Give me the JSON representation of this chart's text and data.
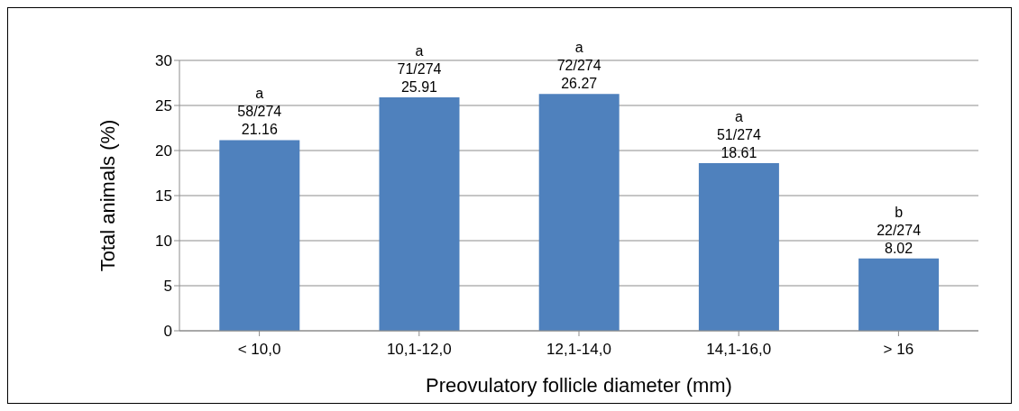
{
  "chart_data": {
    "type": "bar",
    "xlabel": "Preovulatory follicle diameter (mm)",
    "ylabel": "Total  animals (%)",
    "categories": [
      "< 10,0",
      "10,1-12,0",
      "12,1-14,0",
      "14,1-16,0",
      "> 16"
    ],
    "values": [
      21.16,
      25.91,
      26.27,
      18.61,
      8.02
    ],
    "color": "#4f81bd",
    "ylim": [
      0,
      30
    ],
    "yticks": [
      0,
      5,
      10,
      15,
      20,
      25,
      30
    ],
    "grid": "y",
    "data_labels": true,
    "annotations": [
      {
        "text": "a",
        "x": "< 10,0",
        "y": 21.16
      },
      {
        "text": "58/274",
        "x": "< 10,0",
        "y": 21.16
      },
      {
        "text": "a",
        "x": "10,1-12,0",
        "y": 25.91
      },
      {
        "text": "71/274",
        "x": "10,1-12,0",
        "y": 25.91
      },
      {
        "text": "a",
        "x": "12,1-14,0",
        "y": 26.27
      },
      {
        "text": "72/274",
        "x": "12,1-14,0",
        "y": 26.27
      },
      {
        "text": "a",
        "x": "14,1-16,0",
        "y": 18.61
      },
      {
        "text": "51/274",
        "x": "14,1-16,0",
        "y": 18.61
      },
      {
        "text": "b",
        "x": "> 16",
        "y": 8.02
      },
      {
        "text": "22/274",
        "x": "> 16",
        "y": 8.02
      }
    ]
  }
}
